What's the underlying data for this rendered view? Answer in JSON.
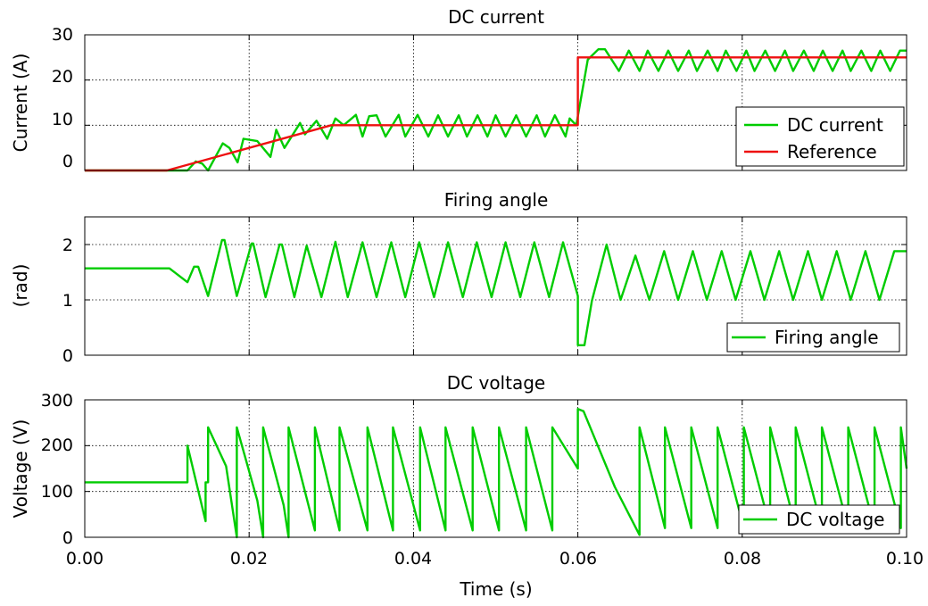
{
  "chart_data": [
    {
      "type": "line",
      "title": "DC current",
      "xlabel": "",
      "ylabel": "Current (A)",
      "xlim": [
        0,
        0.1
      ],
      "ylim": [
        0,
        30
      ],
      "yticks": [
        "0",
        "10",
        "20",
        "30"
      ],
      "grid": true,
      "legend_position": "bottom-right",
      "series": [
        {
          "name": "DC current",
          "color": "#00cc00",
          "x": [
            0,
            0.0125,
            0.0135,
            0.0143,
            0.015,
            0.0168,
            0.0176,
            0.0186,
            0.0193,
            0.021,
            0.0226,
            0.0233,
            0.0243,
            0.0262,
            0.0268,
            0.0282,
            0.0295,
            0.0305,
            0.0315,
            0.033,
            0.0338,
            0.0346,
            0.0355,
            0.0366,
            0.0382,
            0.039,
            0.0405,
            0.0418,
            0.043,
            0.0442,
            0.0455,
            0.0465,
            0.0478,
            0.049,
            0.05,
            0.0512,
            0.0525,
            0.0537,
            0.055,
            0.056,
            0.0572,
            0.0585,
            0.059,
            0.0598,
            0.06,
            0.0612,
            0.0625,
            0.0633,
            0.065,
            0.0662,
            0.0675,
            0.0685,
            0.0698,
            0.071,
            0.0722,
            0.0735,
            0.0745,
            0.0758,
            0.077,
            0.078,
            0.0793,
            0.0805,
            0.0815,
            0.0828,
            0.084,
            0.0852,
            0.0862,
            0.0875,
            0.0887,
            0.0898,
            0.091,
            0.0922,
            0.0932,
            0.0945,
            0.0957,
            0.0968,
            0.098,
            0.0992,
            0.1
          ],
          "y": [
            0,
            0,
            2,
            1.5,
            0,
            6,
            5,
            1.8,
            7,
            6.5,
            3,
            9,
            5,
            10.5,
            8,
            11,
            7,
            11.5,
            10,
            12.3,
            7.5,
            12,
            12.2,
            7.5,
            12.3,
            7.5,
            12.3,
            7.5,
            12.2,
            7.5,
            12.2,
            7.5,
            12.2,
            7.5,
            12.2,
            7.5,
            12.2,
            7.5,
            12.2,
            7.5,
            12.2,
            7.5,
            11.5,
            10,
            12,
            24.5,
            26.8,
            26.8,
            22,
            26.5,
            22,
            26.5,
            22,
            26.5,
            22,
            26.5,
            22,
            26.5,
            22,
            26.5,
            22,
            26.5,
            22,
            26.5,
            22,
            26.5,
            22,
            26.5,
            22,
            26.5,
            22,
            26.5,
            22,
            26.5,
            22,
            26.5,
            22,
            26.5,
            26.5
          ]
        },
        {
          "name": "Reference",
          "color": "#ee1111",
          "x": [
            0,
            0.01,
            0.03,
            0.06,
            0.06,
            0.1
          ],
          "y": [
            0,
            0,
            10,
            10,
            25,
            25
          ]
        }
      ]
    },
    {
      "type": "line",
      "title": "Firing angle",
      "xlabel": "",
      "ylabel": "(rad)",
      "xlim": [
        0,
        0.1
      ],
      "ylim": [
        0,
        2.5
      ],
      "yticks": [
        "0",
        "1",
        "2"
      ],
      "grid": true,
      "legend_position": "bottom-right",
      "series": [
        {
          "name": "Firing angle",
          "color": "#00cc00",
          "x": [
            0,
            0.0103,
            0.0125,
            0.0133,
            0.0138,
            0.015,
            0.0167,
            0.017,
            0.0185,
            0.0203,
            0.0205,
            0.022,
            0.0237,
            0.024,
            0.0255,
            0.027,
            0.0288,
            0.0305,
            0.032,
            0.0338,
            0.0355,
            0.0373,
            0.039,
            0.0407,
            0.0425,
            0.0442,
            0.046,
            0.0477,
            0.0495,
            0.0512,
            0.053,
            0.0547,
            0.0565,
            0.0582,
            0.06,
            0.06,
            0.0608,
            0.0617,
            0.0635,
            0.0652,
            0.067,
            0.0687,
            0.0705,
            0.0722,
            0.074,
            0.0757,
            0.0775,
            0.0792,
            0.081,
            0.0827,
            0.0845,
            0.0862,
            0.088,
            0.0897,
            0.0915,
            0.0932,
            0.095,
            0.0967,
            0.0985,
            0.1
          ],
          "y": [
            1.57,
            1.57,
            1.32,
            1.6,
            1.6,
            1.07,
            2.08,
            2.08,
            1.07,
            2.02,
            2.02,
            1.05,
            2.0,
            2.0,
            1.05,
            1.98,
            1.05,
            2.05,
            1.05,
            2.04,
            1.05,
            2.04,
            1.05,
            2.04,
            1.05,
            2.04,
            1.05,
            2.04,
            1.05,
            2.04,
            1.05,
            2.04,
            1.05,
            2.04,
            1.07,
            0.18,
            0.18,
            0.98,
            2.0,
            1.0,
            1.8,
            1.0,
            1.88,
            1.0,
            1.88,
            1.0,
            1.88,
            1.0,
            1.88,
            1.0,
            1.88,
            1.0,
            1.88,
            1.0,
            1.88,
            1.0,
            1.88,
            1.0,
            1.88,
            1.88
          ]
        }
      ]
    },
    {
      "type": "line",
      "title": "DC voltage",
      "xlabel": "Time (s)",
      "ylabel": "Voltage (V)",
      "xlim": [
        0,
        0.1
      ],
      "ylim": [
        0,
        300
      ],
      "yticks": [
        "0",
        "100",
        "200",
        "300"
      ],
      "xticks": [
        "0.00",
        "0.02",
        "0.04",
        "0.06",
        "0.08",
        "0.10"
      ],
      "grid": true,
      "legend_position": "bottom-right",
      "series": [
        {
          "name": "DC voltage",
          "color": "#00cc00",
          "x": [
            0,
            0.0125,
            0.0125,
            0.0147,
            0.0147,
            0.015,
            0.015,
            0.0172,
            0.0185,
            0.0185,
            0.021,
            0.0217,
            0.0217,
            0.0242,
            0.0248,
            0.0248,
            0.028,
            0.028,
            0.031,
            0.031,
            0.0344,
            0.0344,
            0.0375,
            0.0375,
            0.0408,
            0.0408,
            0.0439,
            0.0439,
            0.0472,
            0.0472,
            0.0504,
            0.0504,
            0.0537,
            0.0537,
            0.0569,
            0.0569,
            0.06,
            0.06,
            0.0607,
            0.0645,
            0.0675,
            0.0675,
            0.0706,
            0.0706,
            0.0738,
            0.0738,
            0.077,
            0.077,
            0.0802,
            0.0802,
            0.0834,
            0.0834,
            0.0865,
            0.0865,
            0.0897,
            0.0897,
            0.0929,
            0.0929,
            0.0961,
            0.0961,
            0.0993,
            0.0993,
            0.1
          ],
          "y": [
            120,
            120,
            200,
            35,
            120,
            120,
            240,
            155,
            0,
            240,
            80,
            0,
            240,
            70,
            0,
            240,
            15,
            240,
            15,
            240,
            15,
            240,
            15,
            240,
            15,
            240,
            15,
            240,
            15,
            240,
            15,
            240,
            15,
            240,
            15,
            240,
            150,
            280,
            275,
            110,
            5,
            240,
            20,
            240,
            20,
            240,
            20,
            240,
            20,
            240,
            20,
            240,
            20,
            240,
            20,
            240,
            20,
            240,
            20,
            240,
            20,
            240,
            150
          ]
        }
      ]
    }
  ]
}
